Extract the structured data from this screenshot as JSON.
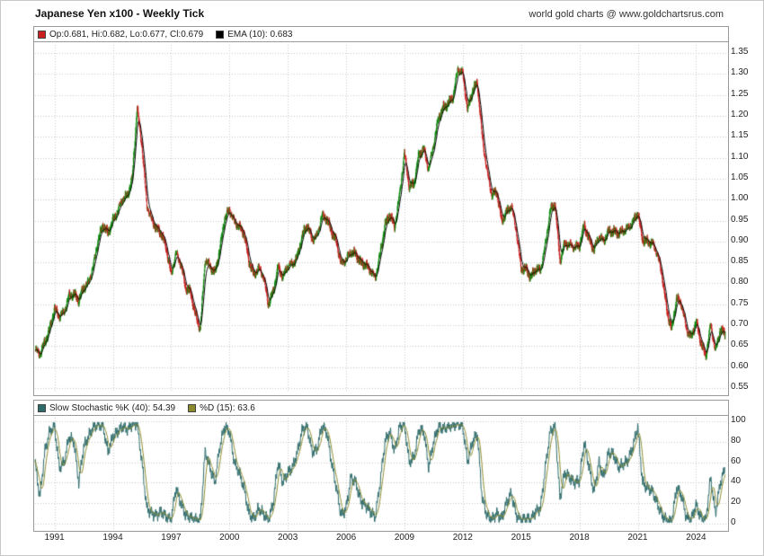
{
  "header": {
    "title": "Japanese Yen x100 - Weekly Tick",
    "attribution": "world gold charts @ www.goldchartsrus.com"
  },
  "main_legend": {
    "ohlc_label": "Op:0.681, Hi:0.682, Lo:0.677, Cl:0.679",
    "ohlc_swatch_color": "#cc2020",
    "ema_label": "EMA (10): 0.683",
    "ema_swatch_color": "#000000"
  },
  "stoch_legend": {
    "k_label": "Slow Stochastic %K (40): 54.39",
    "k_swatch_color": "#2e6b6b",
    "d_label": "%D (15): 63.6",
    "d_swatch_color": "#8b8b2e"
  },
  "chart_data": {
    "x_start": 1990.0,
    "x_step": 0.25,
    "count": 143,
    "x_range": [
      1990.0,
      2025.6
    ],
    "x_tick_years": [
      1991,
      1994,
      1997,
      2000,
      2003,
      2006,
      2009,
      2012,
      2015,
      2018,
      2021,
      2024
    ],
    "colors": {
      "up": "#0e8a0e",
      "down": "#cc2020",
      "ema": "#000000",
      "grid": "#c8c8c8",
      "k_line": "#2e6b6b",
      "d_line": "#8b8b2e"
    },
    "price_panel": {
      "type": "candlestick",
      "title": "Japanese Yen x100 - Weekly Tick",
      "ylim": [
        0.55,
        1.35
      ],
      "y_ticks": [
        1.35,
        1.3,
        1.25,
        1.2,
        1.15,
        1.1,
        1.05,
        1.0,
        0.95,
        0.9,
        0.85,
        0.8,
        0.75,
        0.7,
        0.65,
        0.6,
        0.55
      ],
      "last_ohlc": {
        "open": 0.681,
        "high": 0.682,
        "low": 0.677,
        "close": 0.679
      },
      "ema": {
        "period": 10,
        "last": 0.683
      },
      "close": [
        0.64,
        0.63,
        0.66,
        0.69,
        0.74,
        0.72,
        0.73,
        0.77,
        0.775,
        0.76,
        0.79,
        0.8,
        0.84,
        0.905,
        0.94,
        0.92,
        0.95,
        0.97,
        1.0,
        1.01,
        1.05,
        1.22,
        1.13,
        0.985,
        0.95,
        0.93,
        0.92,
        0.885,
        0.82,
        0.87,
        0.845,
        0.79,
        0.78,
        0.725,
        0.69,
        0.855,
        0.84,
        0.825,
        0.88,
        0.955,
        0.975,
        0.945,
        0.935,
        0.92,
        0.855,
        0.82,
        0.835,
        0.815,
        0.75,
        0.78,
        0.84,
        0.815,
        0.84,
        0.845,
        0.865,
        0.915,
        0.94,
        0.905,
        0.91,
        0.96,
        0.955,
        0.925,
        0.9,
        0.845,
        0.855,
        0.875,
        0.87,
        0.85,
        0.845,
        0.83,
        0.81,
        0.87,
        0.94,
        0.965,
        0.935,
        1.01,
        1.11,
        1.03,
        1.04,
        1.11,
        1.12,
        1.07,
        1.13,
        1.195,
        1.22,
        1.23,
        1.245,
        1.31,
        1.3,
        1.215,
        1.26,
        1.28,
        1.15,
        1.065,
        1.01,
        1.02,
        0.95,
        0.97,
        0.985,
        0.925,
        0.835,
        0.835,
        0.815,
        0.835,
        0.83,
        0.89,
        0.975,
        0.99,
        0.855,
        0.895,
        0.89,
        0.885,
        0.89,
        0.94,
        0.905,
        0.88,
        0.91,
        0.9,
        0.925,
        0.925,
        0.92,
        0.925,
        0.93,
        0.945,
        0.97,
        0.905,
        0.9,
        0.895,
        0.87,
        0.82,
        0.735,
        0.69,
        0.765,
        0.75,
        0.69,
        0.67,
        0.71,
        0.66,
        0.625,
        0.7,
        0.637,
        0.69,
        0.679
      ]
    },
    "stoch_panel": {
      "type": "line",
      "ylim": [
        0,
        100
      ],
      "y_ticks": [
        100,
        80,
        60,
        40,
        20,
        0
      ],
      "series": [
        {
          "name": "Slow Stochastic %K (40)",
          "last": 54.39
        },
        {
          "name": "%D (15)",
          "last": 63.6,
          "derived": "moving average of %K"
        }
      ],
      "k_values": [
        60,
        25,
        70,
        90,
        95,
        55,
        60,
        85,
        80,
        40,
        75,
        85,
        95,
        97,
        95,
        70,
        85,
        90,
        95,
        92,
        97,
        98,
        60,
        15,
        10,
        8,
        12,
        6,
        4,
        35,
        20,
        8,
        6,
        4,
        3,
        70,
        55,
        40,
        75,
        95,
        90,
        60,
        50,
        35,
        10,
        5,
        15,
        10,
        3,
        20,
        60,
        40,
        50,
        55,
        70,
        92,
        95,
        70,
        72,
        95,
        90,
        60,
        35,
        8,
        15,
        45,
        40,
        22,
        18,
        12,
        6,
        40,
        80,
        90,
        70,
        95,
        97,
        60,
        65,
        92,
        90,
        55,
        80,
        95,
        93,
        95,
        96,
        98,
        95,
        60,
        80,
        88,
        25,
        8,
        4,
        10,
        5,
        20,
        30,
        8,
        3,
        5,
        4,
        12,
        15,
        55,
        90,
        95,
        25,
        50,
        45,
        40,
        42,
        80,
        55,
        30,
        60,
        45,
        70,
        68,
        55,
        58,
        62,
        75,
        95,
        40,
        35,
        32,
        20,
        8,
        3,
        2,
        35,
        28,
        6,
        4,
        18,
        6,
        3,
        45,
        10,
        40,
        54.39
      ]
    }
  }
}
